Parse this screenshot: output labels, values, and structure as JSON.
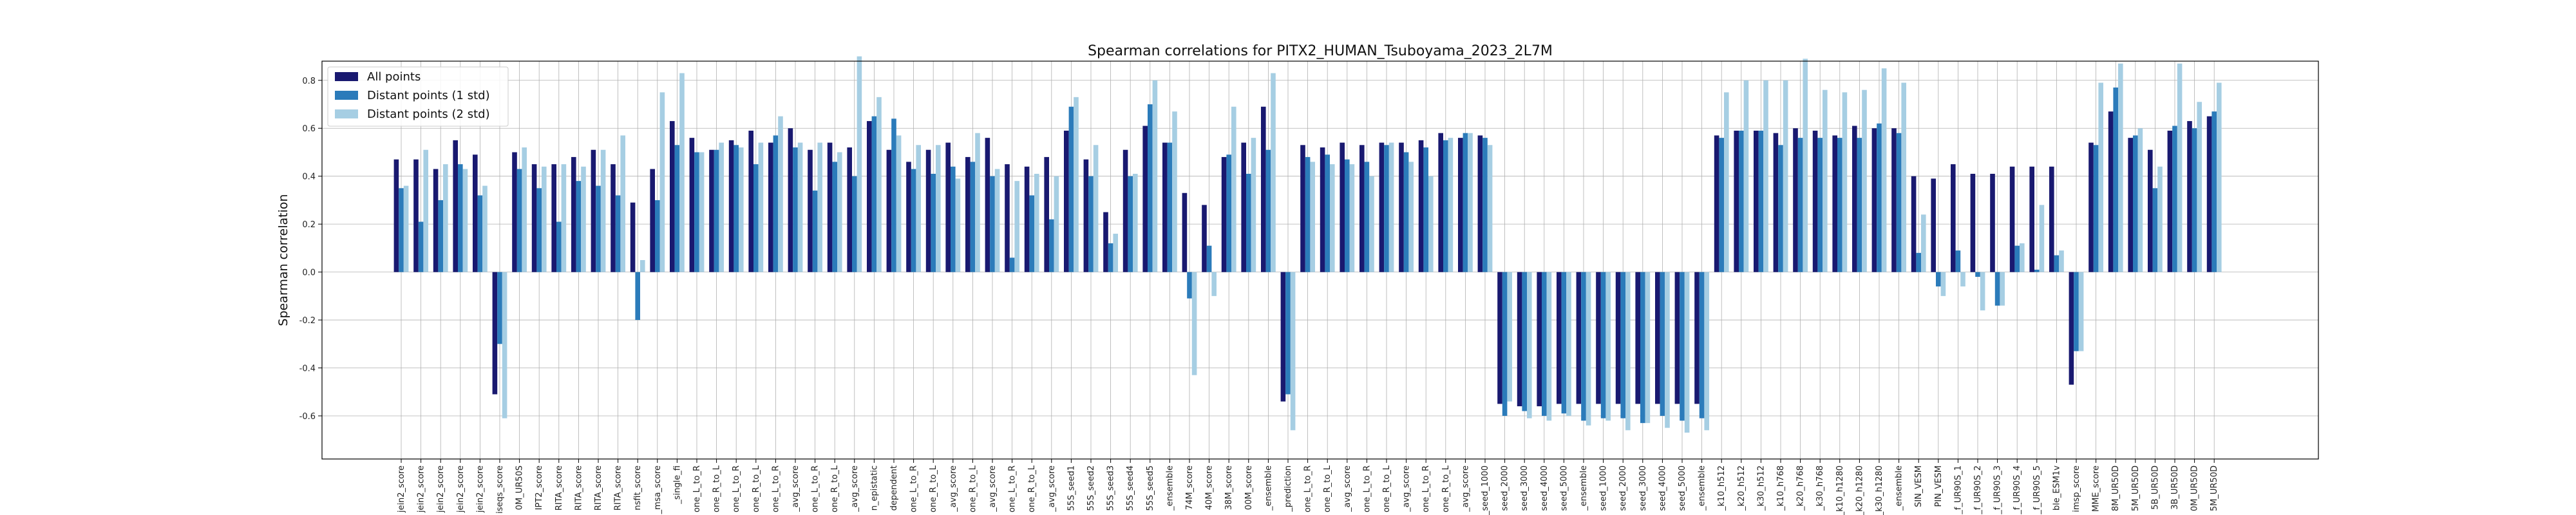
{
  "chart_data": {
    "type": "bar",
    "title": "Spearman correlations for PITX2_HUMAN_Tsuboyama_2023_2L7M",
    "xlabel": "",
    "ylabel": "Spearman correlation",
    "ylim": [
      -0.78,
      0.88
    ],
    "yticks": [
      -0.6,
      -0.4,
      -0.2,
      0.0,
      0.2,
      0.4,
      0.6,
      0.8
    ],
    "grid": true,
    "legend_position": "top-left",
    "colors": [
      "#191970",
      "#2b7bba",
      "#a6cee3"
    ],
    "series": [
      {
        "name": "All points",
        "values": [
          0.47,
          0.47,
          0.43,
          0.55,
          0.49,
          -0.51,
          0.5,
          0.45,
          0.45,
          0.48,
          0.51,
          0.45,
          0.29,
          0.43,
          0.63,
          0.56,
          0.51,
          0.55,
          0.59,
          0.54,
          0.6,
          0.51,
          0.54,
          0.52,
          0.63,
          0.51,
          0.46,
          0.51,
          0.54,
          0.48,
          0.56,
          0.45,
          0.44,
          0.48,
          0.59,
          0.47,
          0.25,
          0.51,
          0.61,
          0.54,
          0.33,
          0.28,
          0.48,
          0.54,
          0.69,
          -0.54,
          0.53,
          0.52,
          0.54,
          0.53,
          0.54,
          0.54,
          0.55,
          0.58,
          0.56,
          0.57,
          -0.55,
          -0.56,
          -0.56,
          -0.55,
          -0.55,
          -0.55,
          -0.55,
          -0.55,
          -0.55,
          -0.55,
          -0.55,
          0.57,
          0.59,
          0.59,
          0.58,
          0.6,
          0.59,
          0.57,
          0.61,
          0.6,
          0.6,
          0.4,
          0.39,
          0.45,
          0.41,
          0.41,
          0.44,
          0.44,
          0.44,
          -0.47,
          0.54,
          0.67,
          0.56,
          0.51,
          0.59,
          0.63,
          0.65
        ]
      },
      {
        "name": "Distant points (1 std)",
        "values": [
          0.35,
          0.21,
          0.3,
          0.45,
          0.32,
          -0.3,
          0.43,
          0.35,
          0.21,
          0.38,
          0.36,
          0.32,
          -0.2,
          0.3,
          0.53,
          0.5,
          0.51,
          0.53,
          0.45,
          0.57,
          0.52,
          0.34,
          0.46,
          0.4,
          0.65,
          0.64,
          0.43,
          0.41,
          0.44,
          0.46,
          0.4,
          0.06,
          0.32,
          0.22,
          0.69,
          0.4,
          0.12,
          0.4,
          0.7,
          0.54,
          -0.11,
          0.11,
          0.49,
          0.41,
          0.51,
          -0.51,
          0.48,
          0.49,
          0.47,
          0.46,
          0.53,
          0.5,
          0.52,
          0.55,
          0.58,
          0.56,
          -0.6,
          -0.58,
          -0.6,
          -0.59,
          -0.62,
          -0.61,
          -0.61,
          -0.63,
          -0.6,
          -0.62,
          -0.61,
          0.56,
          0.59,
          0.59,
          0.53,
          0.56,
          0.56,
          0.56,
          0.56,
          0.62,
          0.58,
          0.08,
          -0.06,
          0.09,
          -0.02,
          -0.14,
          0.11,
          0.01,
          0.07,
          -0.33,
          0.53,
          0.77,
          0.57,
          0.35,
          0.61,
          0.6,
          0.67
        ]
      },
      {
        "name": "Distant points (2 std)",
        "values": [
          0.36,
          0.51,
          0.45,
          0.43,
          0.36,
          -0.61,
          0.52,
          0.44,
          0.45,
          0.44,
          0.51,
          0.57,
          0.05,
          0.75,
          0.83,
          0.5,
          0.54,
          0.52,
          0.54,
          0.65,
          0.54,
          0.54,
          0.5,
          0.9,
          0.73,
          0.57,
          0.53,
          0.53,
          0.39,
          0.58,
          0.43,
          0.38,
          0.41,
          0.4,
          0.73,
          0.53,
          0.16,
          0.41,
          0.8,
          0.67,
          -0.43,
          -0.1,
          0.69,
          0.56,
          0.83,
          -0.66,
          0.46,
          0.45,
          0.45,
          0.4,
          0.54,
          0.46,
          0.4,
          0.56,
          0.58,
          0.53,
          -0.54,
          -0.61,
          -0.62,
          -0.6,
          -0.64,
          -0.62,
          -0.66,
          -0.63,
          -0.65,
          -0.67,
          -0.66,
          0.75,
          0.8,
          0.8,
          0.8,
          0.89,
          0.76,
          0.75,
          0.76,
          0.85,
          0.79,
          0.24,
          -0.1,
          -0.06,
          -0.16,
          -0.14,
          0.12,
          0.28,
          0.09,
          -0.33,
          0.79,
          0.87,
          0.6,
          0.44,
          0.87,
          0.71,
          0.79
        ]
      }
    ],
    "categories": [
      "jein2_score",
      "jein2_score",
      "jein2_score",
      "jein2_score",
      "jein2_score",
      "iseqs_score",
      "0M_UR50S",
      "IPT2_score",
      "RITA_score",
      "RITA_score",
      "RITA_score",
      "RITA_score",
      "nsfit_score",
      "_msa_score",
      "_single_fi",
      "one_L_to_R",
      "one_R_to_L",
      "one_L_to_R",
      "one_R_to_L",
      "one_L_to_R",
      "_avg_score",
      "one_L_to_R",
      "one_R_to_L",
      "_avg_score",
      "n_epistatic",
      "dependent",
      "one_L_to_R",
      "one_R_to_L",
      "_avg_score",
      "one_R_to_L",
      "_avg_score",
      "one_L_to_R",
      "one_R_to_L",
      "_avg_score",
      "55S_seed1",
      "55S_seed2",
      "55S_seed3",
      "55S_seed4",
      "55S_seed5",
      "_ensemble",
      "74M_score",
      "40M_score",
      "38M_score",
      "00M_score",
      "_ensemble",
      "_prediction",
      "one_L_to_R",
      "one_R_to_L",
      "_avg_score",
      "one_L_to_R",
      "one_R_to_L",
      "_avg_score",
      "one_L_to_R",
      "one_R_to_L",
      "_avg_score",
      "_seed_1000",
      "seed_2000",
      "seed_3000",
      "seed_4000",
      "seed_5000",
      "_ensemble",
      "seed_1000",
      "seed_2000",
      "seed_3000",
      "seed_4000",
      "seed_5000",
      "_ensemble",
      "_k10_h512",
      "_k20_h512",
      "_k30_h512",
      "_k10_h768",
      "_k20_h768",
      "_k30_h768",
      "_k10_h1280",
      "_k20_h1280",
      "_k30_h1280",
      "_ensemble",
      "SIN_VESM",
      "PIN_VESM",
      "_f_UR90S_1",
      "_f_UR90S_2",
      "_f_UR90S_3",
      "_f_UR90S_4",
      "_f_UR90S_5",
      "ble_ESM1v",
      "imsp_score",
      "MME_score",
      "8M_UR50D",
      "5M_UR50D",
      "5B_UR50D",
      "3B_UR50D",
      "0M_UR50D",
      "5M_UR50D"
    ]
  }
}
